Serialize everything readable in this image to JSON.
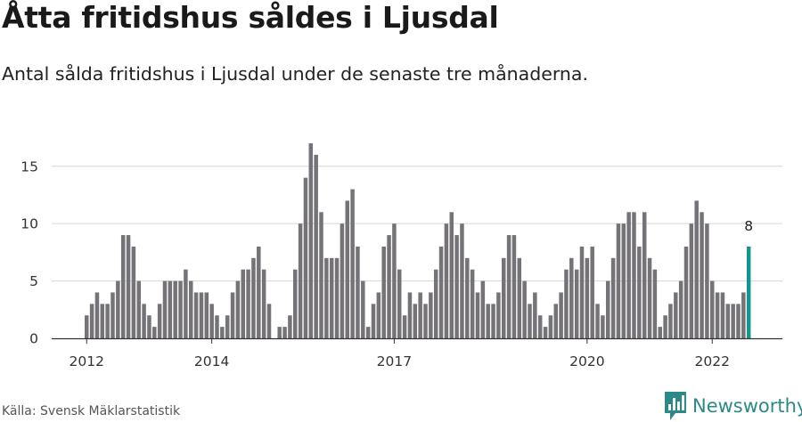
{
  "title": "Åtta fritidshus såldes i Ljusdal",
  "subtitle": "Antal sålda fritidshus i Ljusdal under de senaste tre månaderna.",
  "source": "Källa: Svensk Mäklarstatistik",
  "brand": "Newsworthy",
  "colors": {
    "bar": "#757378",
    "highlight": "#13968f",
    "grid": "#d6d6d6",
    "axis": "#333333",
    "brand": "#2b8a87"
  },
  "chart_data": {
    "type": "bar",
    "title": "Åtta fritidshus såldes i Ljusdal",
    "subtitle": "Antal sålda fritidshus i Ljusdal under de senaste tre månaderna.",
    "xlabel": "",
    "ylabel": "",
    "ylim": [
      0,
      17
    ],
    "yticks": [
      0,
      5,
      10,
      15
    ],
    "grid": true,
    "x_tick_labels": [
      {
        "label": "2012",
        "index": 0
      },
      {
        "label": "2014",
        "index": 24
      },
      {
        "label": "2017",
        "index": 59
      },
      {
        "label": "2020",
        "index": 96
      },
      {
        "label": "2022",
        "index": 120
      }
    ],
    "values": [
      2,
      3,
      4,
      3,
      3,
      4,
      5,
      9,
      9,
      8,
      5,
      3,
      2,
      1,
      3,
      5,
      5,
      5,
      5,
      6,
      5,
      4,
      4,
      4,
      3,
      2,
      1,
      2,
      4,
      5,
      6,
      6,
      7,
      8,
      6,
      3,
      0,
      1,
      1,
      2,
      6,
      10,
      14,
      17,
      16,
      11,
      7,
      7,
      7,
      10,
      12,
      13,
      8,
      5,
      1,
      3,
      4,
      8,
      9,
      10,
      6,
      2,
      4,
      3,
      4,
      3,
      4,
      6,
      8,
      10,
      11,
      9,
      10,
      7,
      6,
      4,
      5,
      3,
      3,
      4,
      7,
      9,
      9,
      7,
      5,
      3,
      4,
      2,
      1,
      2,
      3,
      4,
      6,
      7,
      6,
      8,
      7,
      8,
      3,
      2,
      5,
      7,
      10,
      10,
      11,
      11,
      8,
      11,
      7,
      6,
      1,
      2,
      3,
      4,
      5,
      8,
      10,
      12,
      11,
      10,
      5,
      4,
      4,
      3,
      3,
      3,
      4,
      8
    ],
    "highlight_index": 127,
    "highlight_label": "8"
  }
}
